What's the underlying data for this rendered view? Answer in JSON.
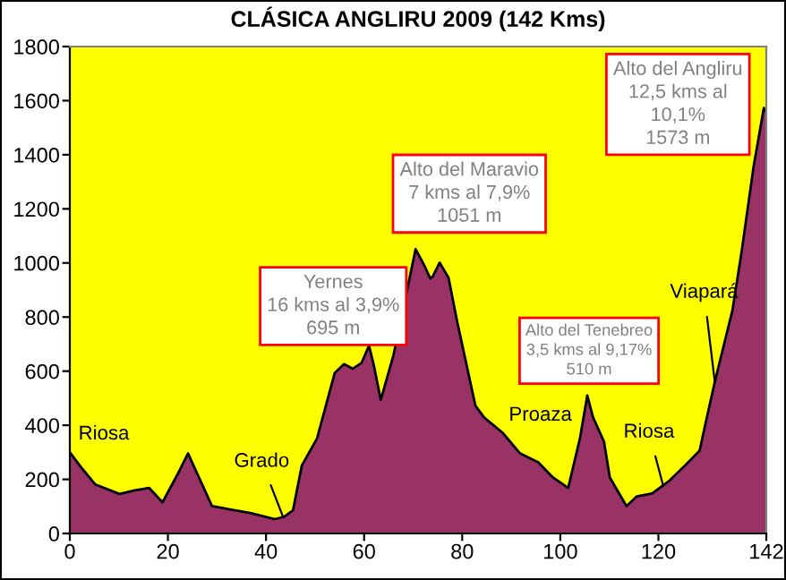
{
  "chart_data": {
    "type": "area",
    "title": "CLÁSICA ANGLIRU 2009 (142 Kms)",
    "x": [
      0,
      2.2,
      5.2,
      10.1,
      13.2,
      16.2,
      18.9,
      22.3,
      24.1,
      29,
      37,
      41.8,
      43.7,
      45.5,
      47.3,
      50.4,
      52.2,
      54,
      55.9,
      57.7,
      59.5,
      61,
      62,
      63.4,
      66,
      70.5,
      72.3,
      73.5,
      74,
      75.4,
      77.2,
      79,
      82.7,
      84.5,
      88.2,
      91.8,
      95.5,
      98.5,
      101.6,
      104,
      105.5,
      106.7,
      108.9,
      110.1,
      113.5,
      115.6,
      118.7,
      122.3,
      125.4,
      128.4,
      129.6,
      131.5,
      133.3,
      135.1,
      137,
      139.4,
      141.5,
      142
    ],
    "series": [
      {
        "color": "#993366",
        "values": [
          300,
          247,
          181,
          146,
          159,
          168,
          115,
          230,
          296,
          101,
          75,
          53,
          62,
          86,
          251,
          351,
          472,
          593,
          626,
          609,
          631,
          695,
          620,
          494,
          660,
          1051,
          990,
          942,
          950,
          1001,
          946,
          781,
          472,
          428,
          373,
          296,
          263,
          207,
          168,
          351,
          510,
          428,
          340,
          207,
          101,
          137,
          148,
          196,
          251,
          306,
          406,
          560,
          693,
          825,
          1046,
          1355,
          1573,
          1560
        ]
      }
    ],
    "xlim": [
      0,
      142
    ],
    "xticks": [
      0,
      20,
      40,
      60,
      80,
      100,
      120,
      142
    ],
    "ylim": [
      0,
      1800
    ],
    "yticks": [
      0,
      200,
      400,
      600,
      800,
      1000,
      1200,
      1400,
      1600,
      1800
    ],
    "grid": false,
    "legend": false,
    "annotations": [
      {
        "text": "Riosa",
        "x": 0,
        "y": 300
      },
      {
        "text": "Grado",
        "x": 43.5,
        "y": 60
      },
      {
        "text": "Yernes\n16 kms al 3,9%\n695 m",
        "x": 61,
        "y": 695
      },
      {
        "text": "Alto del Maravio\n7 kms al 7,9%\n1051 m",
        "x": 70.5,
        "y": 1051
      },
      {
        "text": "Proaza",
        "x": 89,
        "y": 350
      },
      {
        "text": "Alto del Tenebreo\n3,5 kms al 9,17%\n510 m",
        "x": 105.5,
        "y": 510
      },
      {
        "text": "Riosa",
        "x": 121,
        "y": 175
      },
      {
        "text": "Viapará",
        "x": 131.5,
        "y": 560
      },
      {
        "text": "Alto del Angliru\n12,5 kms al\n10,1%\n1573 m",
        "x": 141.5,
        "y": 1573
      }
    ]
  }
}
